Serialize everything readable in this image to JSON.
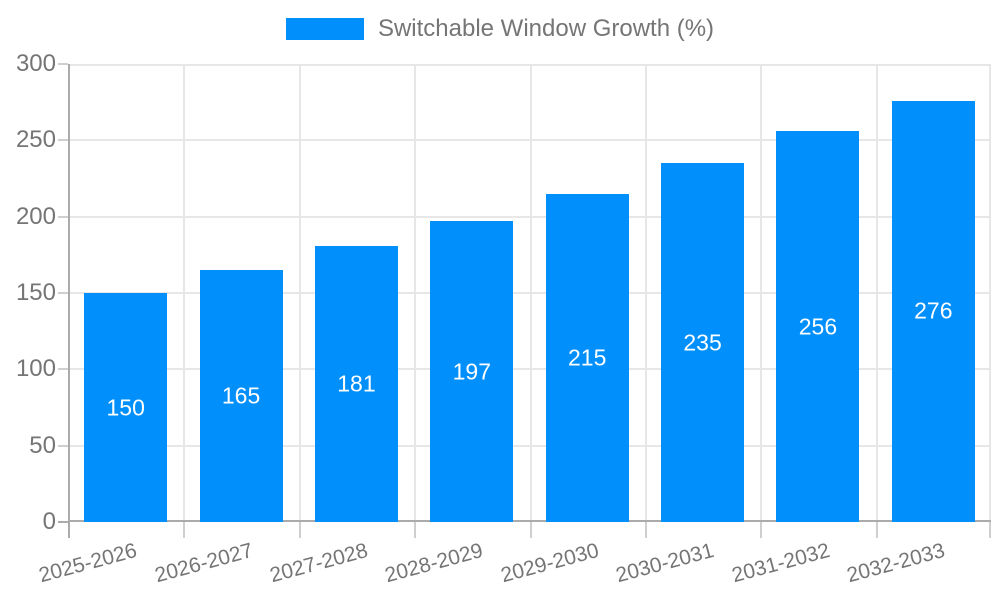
{
  "chart_data": {
    "type": "bar",
    "series_name": "Switchable Window Growth (%)",
    "categories": [
      "2025-2026",
      "2026-2027",
      "2027-2028",
      "2028-2029",
      "2029-2030",
      "2030-2031",
      "2031-2032",
      "2032-2033"
    ],
    "values": [
      150,
      165,
      181,
      197,
      215,
      235,
      256,
      276
    ],
    "ylim": [
      0,
      300
    ],
    "yticks": [
      0,
      50,
      100,
      150,
      200,
      250,
      300
    ],
    "grid": true,
    "legend_position": "top",
    "value_labels_shown": true,
    "x_label_rotation_deg": -15,
    "colors": {
      "bar": "#008FFB",
      "value_label": "#ffffff",
      "axis_label": "#757575",
      "grid": "#e7e7e7",
      "axis_line": "#ababab",
      "tick": "#cfcfcf",
      "background": "#ffffff"
    }
  }
}
